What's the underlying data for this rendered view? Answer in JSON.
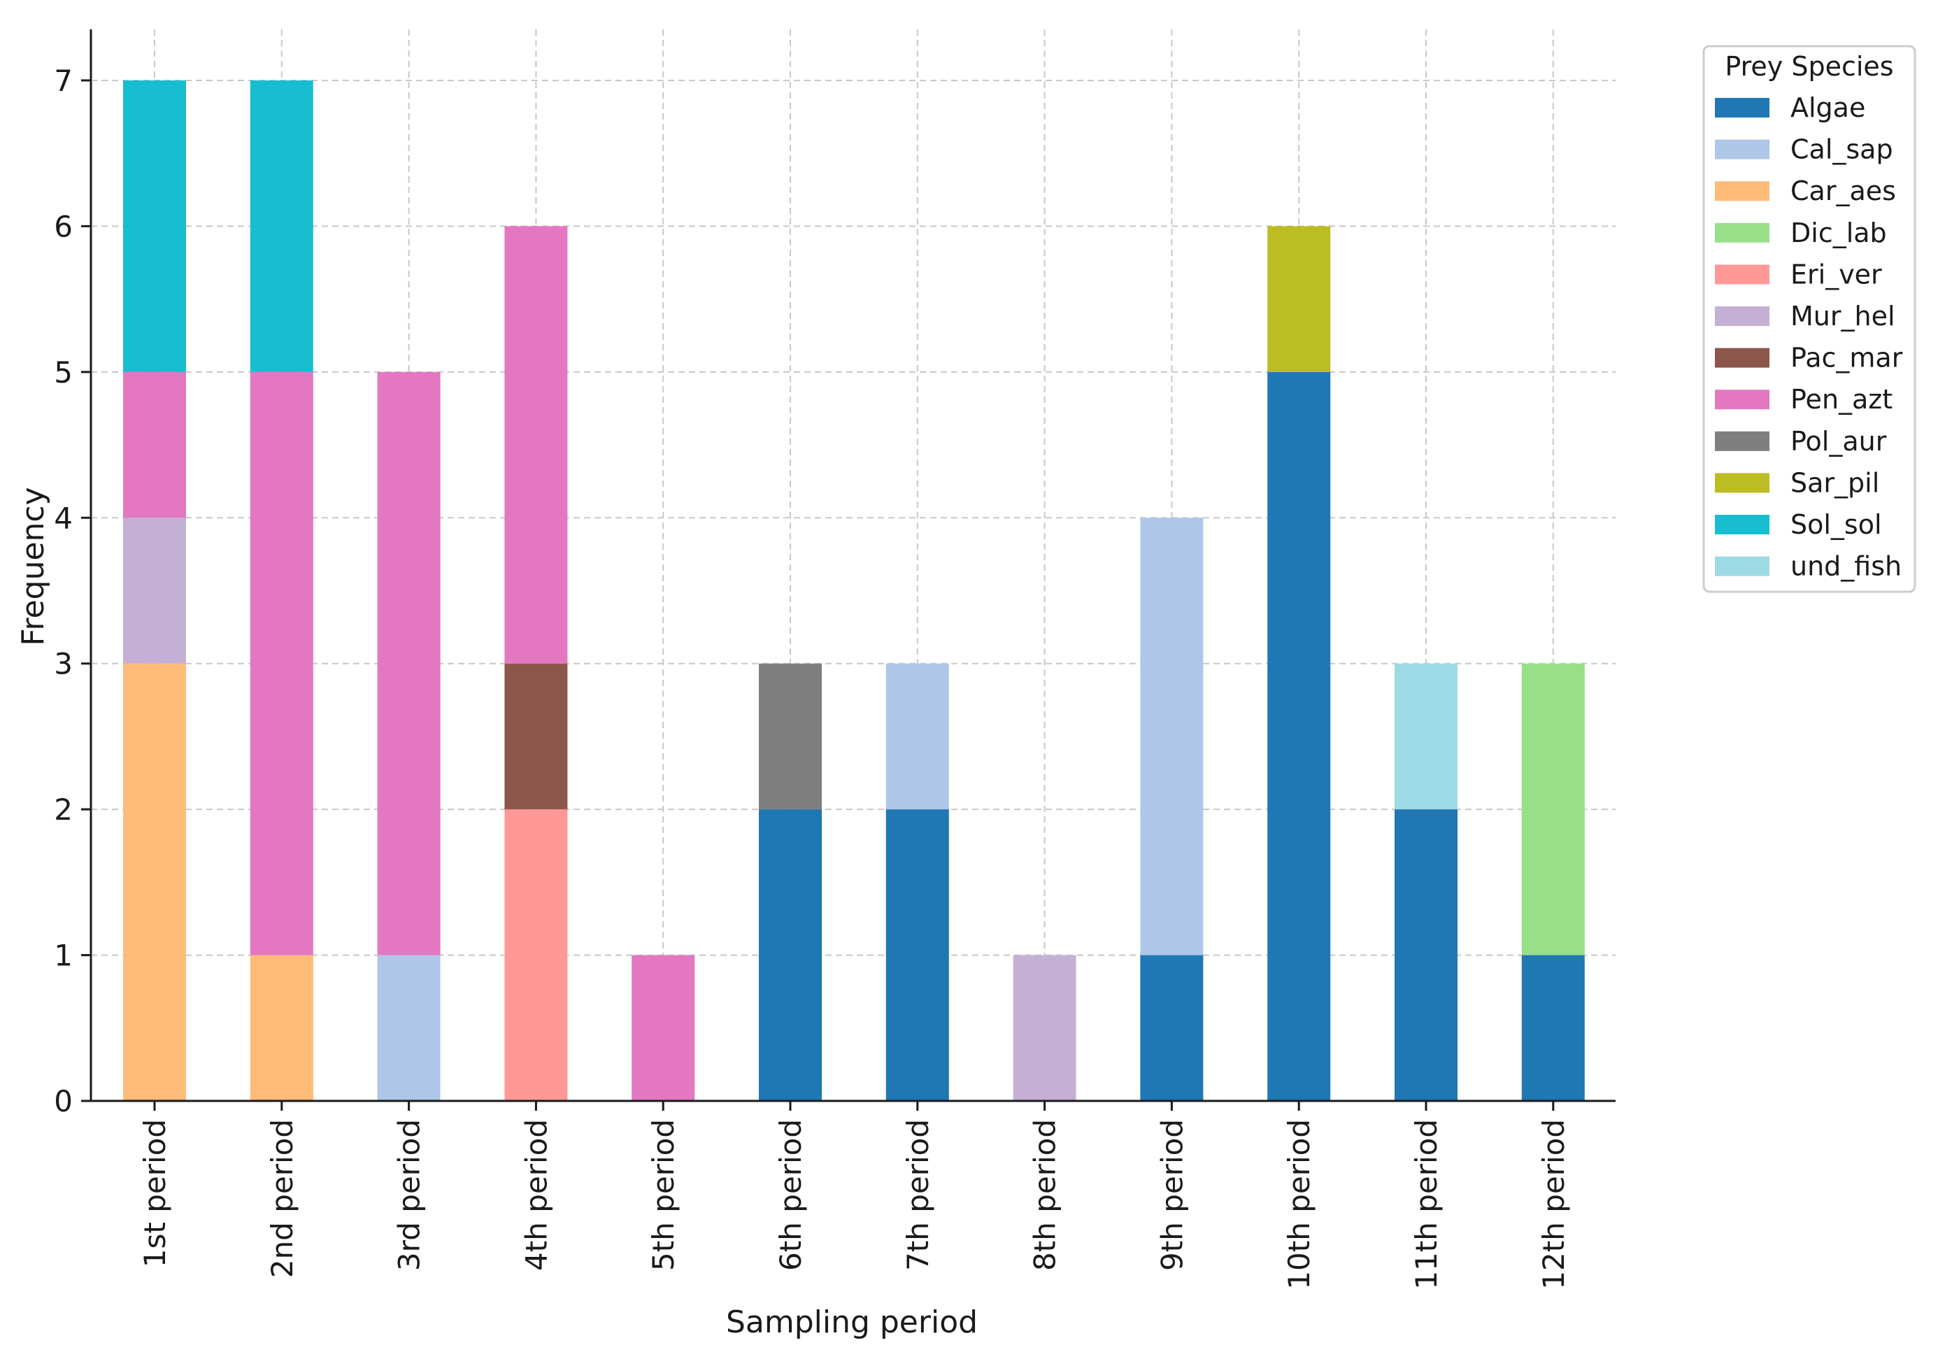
{
  "chart_data": {
    "type": "bar",
    "stacked": true,
    "title": "",
    "xlabel": "Sampling period",
    "ylabel": "Frequency",
    "ylim": [
      0,
      7.35
    ],
    "yticks": [
      0,
      1,
      2,
      3,
      4,
      5,
      6,
      7
    ],
    "grid": true,
    "legend_title": "Prey Species",
    "legend_position": "outside-top-right",
    "categories": [
      "1st period",
      "2nd period",
      "3rd period",
      "4th period",
      "5th period",
      "6th period",
      "7th period",
      "8th period",
      "9th period",
      "10th period",
      "11th period",
      "12th period"
    ],
    "series": [
      {
        "name": "Algae",
        "color": "#1f77b4",
        "values": [
          0,
          0,
          0,
          0,
          0,
          2,
          2,
          0,
          1,
          5,
          2,
          1
        ]
      },
      {
        "name": "Cal_sap",
        "color": "#aec7e8",
        "values": [
          0,
          0,
          1,
          0,
          0,
          0,
          1,
          0,
          3,
          0,
          0,
          0
        ]
      },
      {
        "name": "Car_aes",
        "color": "#ffbb78",
        "values": [
          3,
          1,
          0,
          0,
          0,
          0,
          0,
          0,
          0,
          0,
          0,
          0
        ]
      },
      {
        "name": "Dic_lab",
        "color": "#98df8a",
        "values": [
          0,
          0,
          0,
          0,
          0,
          0,
          0,
          0,
          0,
          0,
          0,
          2
        ]
      },
      {
        "name": "Eri_ver",
        "color": "#ff9896",
        "values": [
          0,
          0,
          0,
          2,
          0,
          0,
          0,
          0,
          0,
          0,
          0,
          0
        ]
      },
      {
        "name": "Mur_hel",
        "color": "#c5b0d5",
        "values": [
          1,
          0,
          0,
          0,
          0,
          0,
          0,
          1,
          0,
          0,
          0,
          0
        ]
      },
      {
        "name": "Pac_mar",
        "color": "#8c564b",
        "values": [
          0,
          0,
          0,
          1,
          0,
          0,
          0,
          0,
          0,
          0,
          0,
          0
        ]
      },
      {
        "name": "Pen_azt",
        "color": "#e377c2",
        "values": [
          1,
          4,
          4,
          3,
          1,
          0,
          0,
          0,
          0,
          0,
          0,
          0
        ]
      },
      {
        "name": "Pol_aur",
        "color": "#7f7f7f",
        "values": [
          0,
          0,
          0,
          0,
          0,
          1,
          0,
          0,
          0,
          0,
          0,
          0
        ]
      },
      {
        "name": "Sar_pil",
        "color": "#bcbd22",
        "values": [
          0,
          0,
          0,
          0,
          0,
          0,
          0,
          0,
          0,
          1,
          0,
          0
        ]
      },
      {
        "name": "Sol_sol",
        "color": "#17becf",
        "values": [
          2,
          2,
          0,
          0,
          0,
          0,
          0,
          0,
          0,
          0,
          0,
          0
        ]
      },
      {
        "name": "und_fish",
        "color": "#9edae5",
        "values": [
          0,
          0,
          0,
          0,
          0,
          0,
          0,
          0,
          0,
          0,
          1,
          0
        ]
      }
    ]
  }
}
